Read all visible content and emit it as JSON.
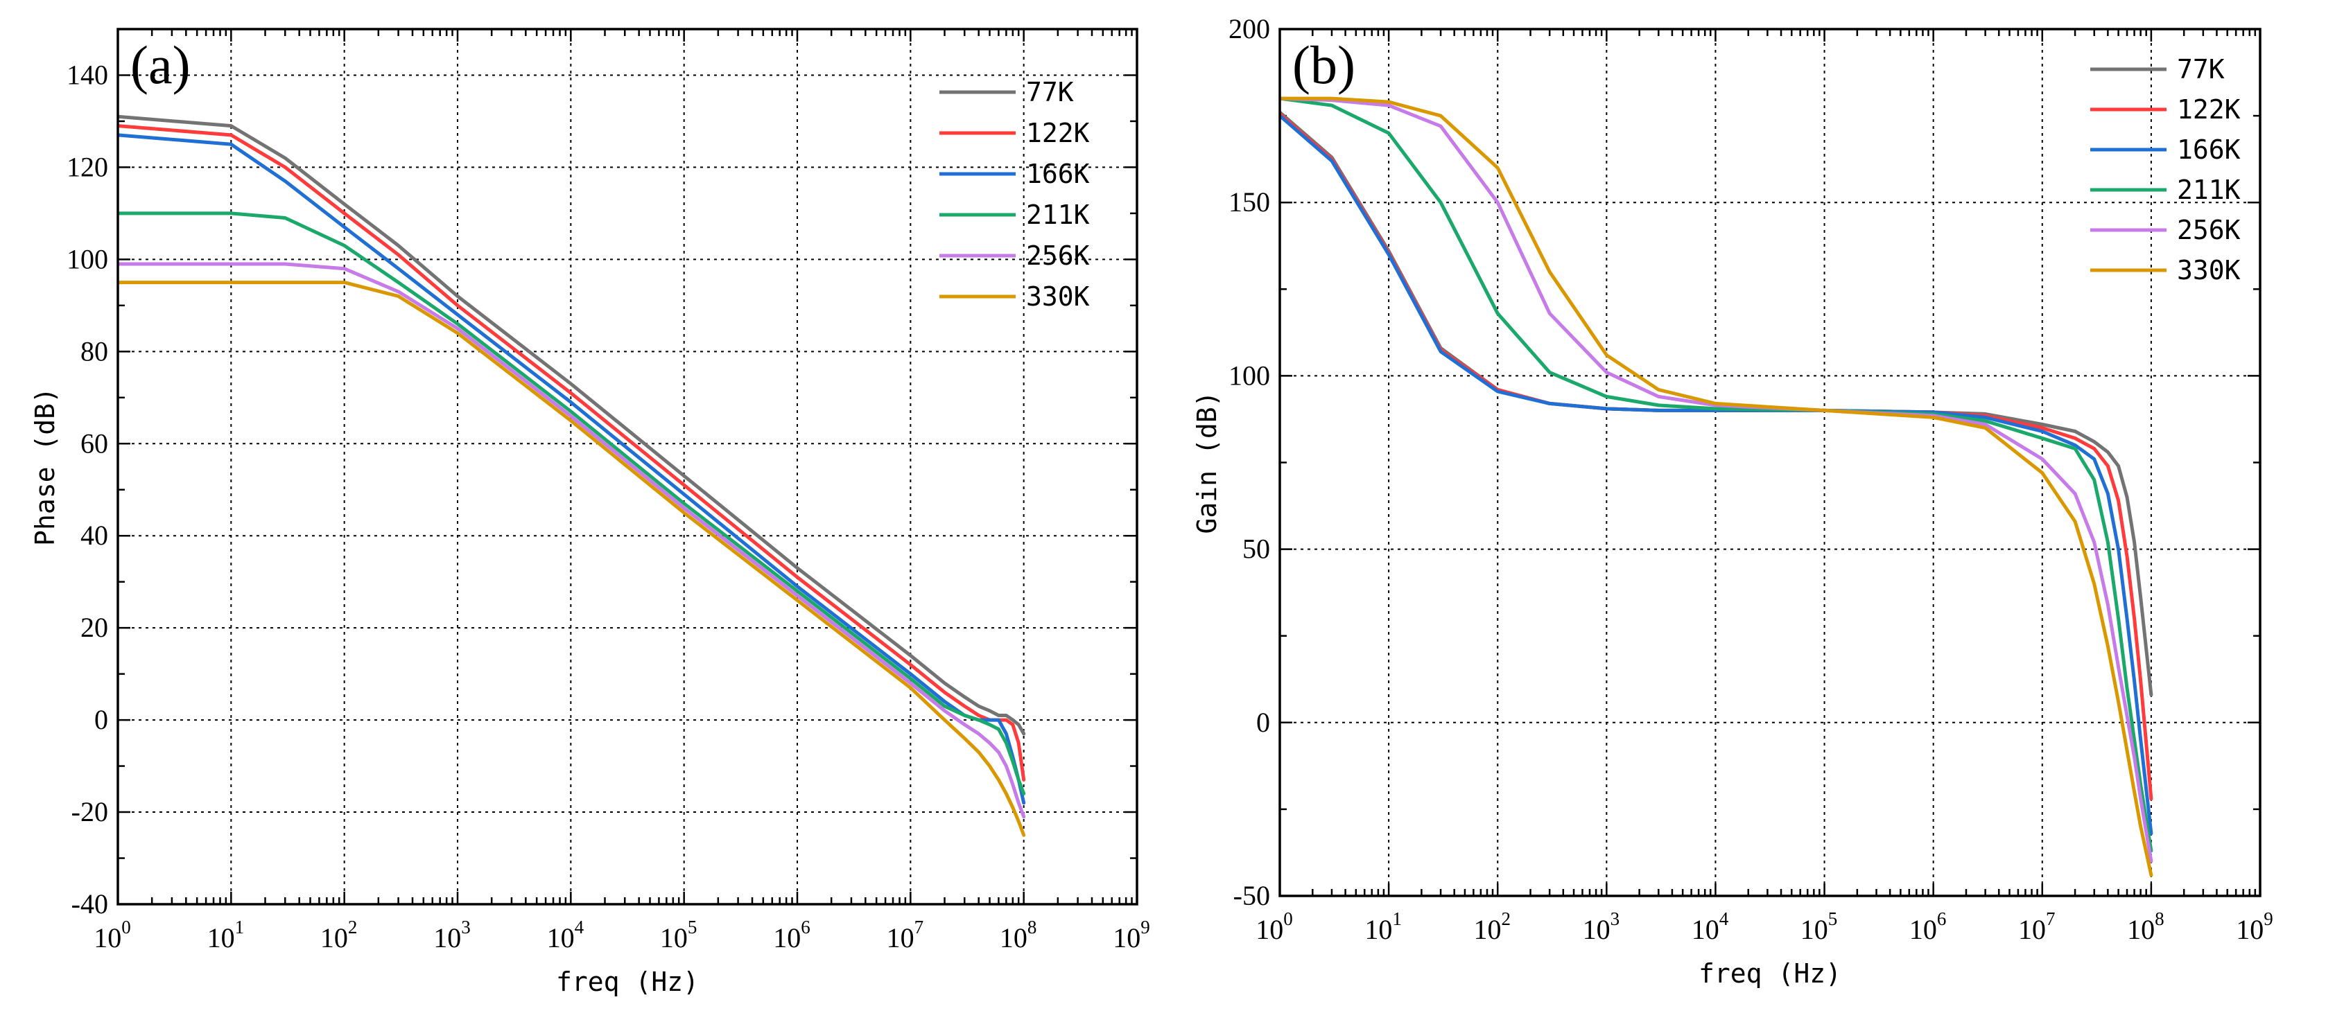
{
  "chart_data": [
    {
      "type": "line",
      "panel_label": "(a)",
      "title": "",
      "xlabel": "freq (Hz)",
      "ylabel": "Phase (dB)",
      "x_scale": "log10",
      "xlim": [
        1,
        1000000000
      ],
      "ylim": [
        -40,
        150
      ],
      "x_ticks": [
        {
          "base": "10",
          "exp": "0"
        },
        {
          "base": "10",
          "exp": "1"
        },
        {
          "base": "10",
          "exp": "2"
        },
        {
          "base": "10",
          "exp": "3"
        },
        {
          "base": "10",
          "exp": "4"
        },
        {
          "base": "10",
          "exp": "5"
        },
        {
          "base": "10",
          "exp": "6"
        },
        {
          "base": "10",
          "exp": "7"
        },
        {
          "base": "10",
          "exp": "8"
        },
        {
          "base": "10",
          "exp": "9"
        }
      ],
      "y_ticks": [
        "-40",
        "-20",
        "0",
        "20",
        "40",
        "60",
        "80",
        "100",
        "120",
        "140"
      ],
      "grid": true,
      "legend_position": "top-right",
      "x": [
        1,
        10,
        30,
        100,
        300,
        1000,
        10000,
        100000,
        1000000,
        10000000,
        20000000,
        30000000,
        40000000,
        50000000,
        60000000,
        70000000,
        80000000,
        90000000,
        100000000
      ],
      "series": [
        {
          "name": "77K",
          "color": "#737373",
          "values": [
            131,
            129,
            122,
            112,
            103,
            92,
            73,
            53,
            33,
            14,
            8,
            5,
            3,
            2,
            1,
            1,
            0,
            -1,
            -3
          ]
        },
        {
          "name": "122K",
          "color": "#ff3b3b",
          "values": [
            129,
            127,
            120,
            110,
            101,
            90,
            71,
            51,
            31,
            12,
            6,
            3,
            1,
            0,
            0,
            0,
            -1,
            -5,
            -13
          ]
        },
        {
          "name": "166K",
          "color": "#1f6fd4",
          "values": [
            127,
            125,
            117,
            107,
            98,
            88,
            69,
            49,
            29,
            10,
            4,
            1,
            0,
            0,
            0,
            -3,
            -8,
            -13,
            -18
          ]
        },
        {
          "name": "211K",
          "color": "#1aa86b",
          "values": [
            110,
            110,
            109,
            103,
            95,
            86,
            67,
            47,
            28,
            9,
            3,
            1,
            0,
            -1,
            -2,
            -5,
            -9,
            -13,
            -16
          ]
        },
        {
          "name": "256K",
          "color": "#c67be8",
          "values": [
            99,
            99,
            99,
            98,
            93,
            85,
            66,
            46,
            27,
            8,
            2,
            -1,
            -3,
            -5,
            -7,
            -10,
            -14,
            -18,
            -21
          ]
        },
        {
          "name": "330K",
          "color": "#d99800",
          "values": [
            95,
            95,
            95,
            95,
            92,
            84,
            65,
            45,
            26,
            7,
            0,
            -4,
            -7,
            -10,
            -13,
            -16,
            -19,
            -22,
            -25
          ]
        }
      ]
    },
    {
      "type": "line",
      "panel_label": "(b)",
      "title": "",
      "xlabel": "freq (Hz)",
      "ylabel": "Gain (dB)",
      "x_scale": "log10",
      "xlim": [
        1,
        1000000000
      ],
      "ylim": [
        -50,
        200
      ],
      "x_ticks": [
        {
          "base": "10",
          "exp": "0"
        },
        {
          "base": "10",
          "exp": "1"
        },
        {
          "base": "10",
          "exp": "2"
        },
        {
          "base": "10",
          "exp": "3"
        },
        {
          "base": "10",
          "exp": "4"
        },
        {
          "base": "10",
          "exp": "5"
        },
        {
          "base": "10",
          "exp": "6"
        },
        {
          "base": "10",
          "exp": "7"
        },
        {
          "base": "10",
          "exp": "8"
        },
        {
          "base": "10",
          "exp": "9"
        }
      ],
      "y_ticks": [
        "-50",
        "0",
        "50",
        "100",
        "150",
        "200"
      ],
      "grid": true,
      "legend_position": "top-right",
      "x": [
        1,
        3,
        10,
        30,
        100,
        300,
        1000,
        3000,
        10000,
        100000,
        1000000,
        3000000,
        10000000,
        20000000,
        30000000,
        40000000,
        50000000,
        60000000,
        70000000,
        80000000,
        100000000
      ],
      "series": [
        {
          "name": "77K",
          "color": "#737373",
          "values": [
            176,
            163,
            136,
            108,
            96,
            92,
            90.5,
            90,
            90,
            90,
            89.5,
            89,
            86,
            84,
            81,
            78,
            74,
            65,
            52,
            36,
            8
          ]
        },
        {
          "name": "122K",
          "color": "#ff3b3b",
          "values": [
            175.5,
            162.5,
            135.5,
            107.5,
            96,
            92,
            90.5,
            90,
            90,
            90,
            89.5,
            88.5,
            85,
            82,
            79,
            74,
            64,
            48,
            30,
            12,
            -22
          ]
        },
        {
          "name": "166K",
          "color": "#1f6fd4",
          "values": [
            175,
            162,
            135,
            107,
            95.5,
            92,
            90.5,
            90,
            90,
            90,
            89.5,
            88,
            84,
            80,
            76,
            66,
            50,
            30,
            12,
            -5,
            -32
          ]
        },
        {
          "name": "211K",
          "color": "#1aa86b",
          "values": [
            180,
            178,
            170,
            150,
            118,
            101,
            94,
            91.5,
            90.5,
            90,
            89,
            87,
            82,
            79,
            70,
            52,
            30,
            10,
            -5,
            -18,
            -37
          ]
        },
        {
          "name": "256K",
          "color": "#c67be8",
          "values": [
            180,
            179.5,
            178,
            172,
            150,
            118,
            101,
            94,
            91.5,
            90,
            88.5,
            86,
            76,
            66,
            52,
            34,
            16,
            2,
            -10,
            -22,
            -40
          ]
        },
        {
          "name": "330K",
          "color": "#d99800",
          "values": [
            180,
            180,
            179,
            175,
            160,
            130,
            106,
            96,
            92,
            90,
            88,
            85,
            72,
            58,
            40,
            22,
            6,
            -8,
            -20,
            -30,
            -44
          ]
        }
      ]
    }
  ]
}
